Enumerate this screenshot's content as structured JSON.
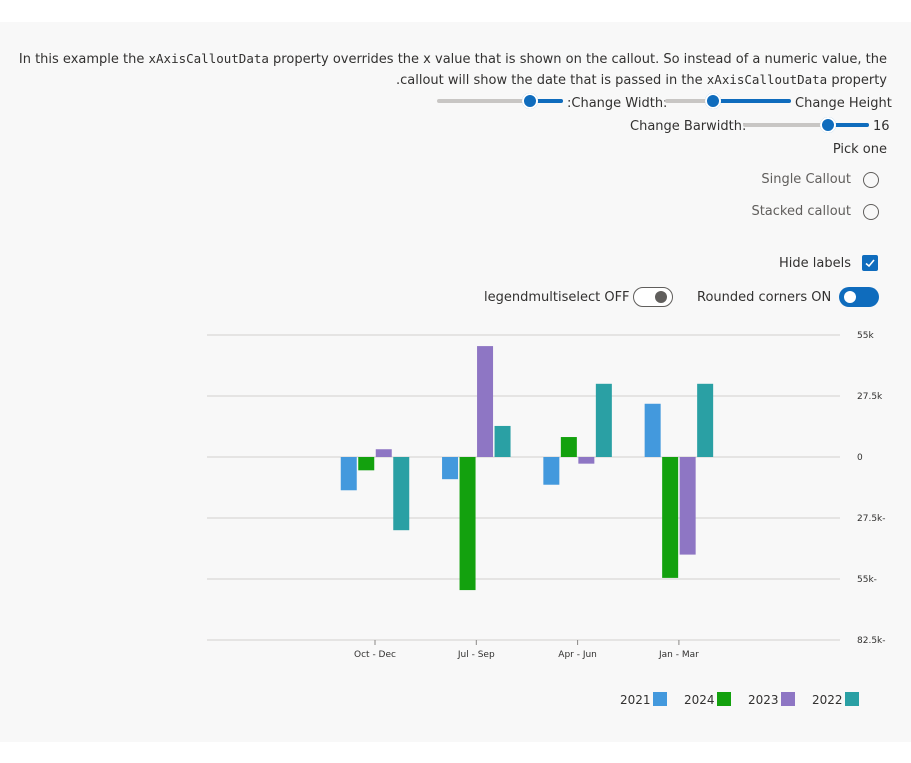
{
  "description": {
    "line1": [
      "In this example the ",
      "xAxisCalloutData",
      " property overrides the x value that is shown on the callout. So instead of a numeric value, the"
    ],
    "line2": [
      ".callout will show the date that is passed in the ",
      "xAxisCalloutData",
      " property"
    ]
  },
  "controls": {
    "width_label": ":Change Width:",
    "height_label": "Change Height",
    "barwidth_label": "Change Barwidth:",
    "barwidth_value": "16",
    "pick_label": "Pick one",
    "radio_single": "Single Callout",
    "radio_stacked": "Stacked callout",
    "hide_labels": "Hide labels",
    "legend_multiselect": "legendmultiselect OFF",
    "rounded_corners": "Rounded corners ON"
  },
  "chart_data": {
    "type": "bar",
    "categories": [
      "Oct - Dec",
      "Jul - Sep",
      "Apr - Jun",
      "Jan - Mar"
    ],
    "series": [
      {
        "name": "2021",
        "color": "#4399dd",
        "values": [
          -15000,
          -10000,
          -12500,
          24000
        ]
      },
      {
        "name": "2024",
        "color": "#13a10e",
        "values": [
          -6000,
          -60000,
          9000,
          -54500
        ]
      },
      {
        "name": "2023",
        "color": "#8e76c4",
        "values": [
          3500,
          50000,
          -3000,
          -44000
        ]
      },
      {
        "name": "2022",
        "color": "#2aa0a4",
        "values": [
          -33000,
          14000,
          33000,
          33000
        ]
      }
    ],
    "ylim": [
      -82500,
      55000
    ],
    "yticks": [
      {
        "value": -82500,
        "label": "82.5k-"
      },
      {
        "value": -55000,
        "label": "55k-"
      },
      {
        "value": -27500,
        "label": "27.5k-"
      },
      {
        "value": 0,
        "label": "0"
      },
      {
        "value": 27500,
        "label": "27.5k"
      },
      {
        "value": 55000,
        "label": "55k"
      }
    ],
    "grid": true
  }
}
